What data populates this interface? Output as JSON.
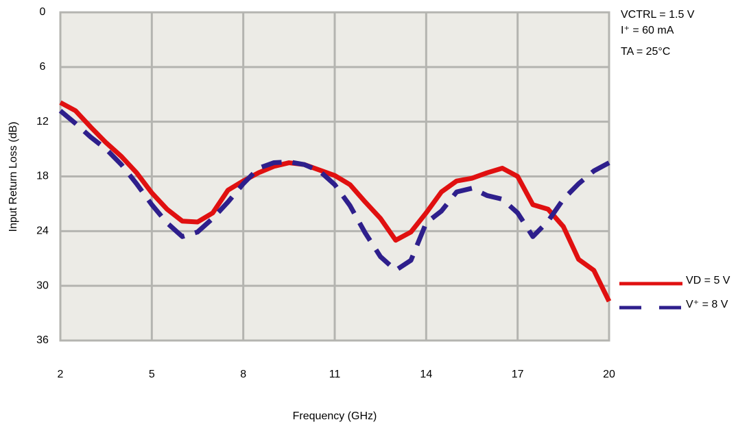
{
  "chart_data": {
    "type": "line",
    "x_label": "Frequency (GHz)",
    "y_label": "Input Return Loss  (dB)",
    "annotations": [
      "VCTRL = 1.5 V",
      "I⁺ = 60 mA",
      "TA = 25°C"
    ],
    "x": [
      2,
      2.5,
      3,
      3.5,
      4,
      4.5,
      5,
      5.5,
      6,
      6.5,
      7,
      7.5,
      8,
      8.5,
      9,
      9.5,
      10,
      10.5,
      11,
      11.5,
      12,
      12.5,
      13,
      13.5,
      14,
      14.5,
      15,
      15.5,
      16,
      16.5,
      17,
      17.5,
      18,
      18.5,
      19,
      19.5,
      20
    ],
    "series": [
      {
        "name": "VD = 5 V",
        "color": "#e01010",
        "dashed": false,
        "values": [
          9.9,
          10.8,
          12.6,
          14.3,
          15.8,
          17.6,
          19.8,
          21.6,
          22.9,
          23.0,
          22.0,
          19.5,
          18.5,
          17.6,
          16.9,
          16.5,
          16.7,
          17.3,
          17.9,
          18.9,
          20.8,
          22.6,
          25.0,
          24.1,
          22.0,
          19.7,
          18.5,
          18.2,
          17.6,
          17.1,
          18.0,
          21.1,
          21.6,
          23.5,
          27.1,
          28.3,
          31.7
        ]
      },
      {
        "name": "V⁺ = 8 V",
        "color": "#2e1f8c",
        "dashed": true,
        "values": [
          10.8,
          12.2,
          13.7,
          15.0,
          16.7,
          18.8,
          21.1,
          23.1,
          24.6,
          24.1,
          22.6,
          20.8,
          18.8,
          17.1,
          16.5,
          16.4,
          16.7,
          17.4,
          18.9,
          21.2,
          24.2,
          26.8,
          28.3,
          27.2,
          23.1,
          21.8,
          19.7,
          19.3,
          20.1,
          20.5,
          22.0,
          24.6,
          22.9,
          20.5,
          18.8,
          17.4,
          16.5
        ]
      }
    ],
    "xlim": [
      2,
      20
    ],
    "xticks": [
      2,
      5,
      8,
      11,
      14,
      17,
      20
    ],
    "ylim": [
      0,
      36
    ],
    "yticks": [
      0,
      6,
      12,
      18,
      24,
      30,
      36
    ],
    "y_inverted": true,
    "grid": true,
    "legend": "right"
  }
}
